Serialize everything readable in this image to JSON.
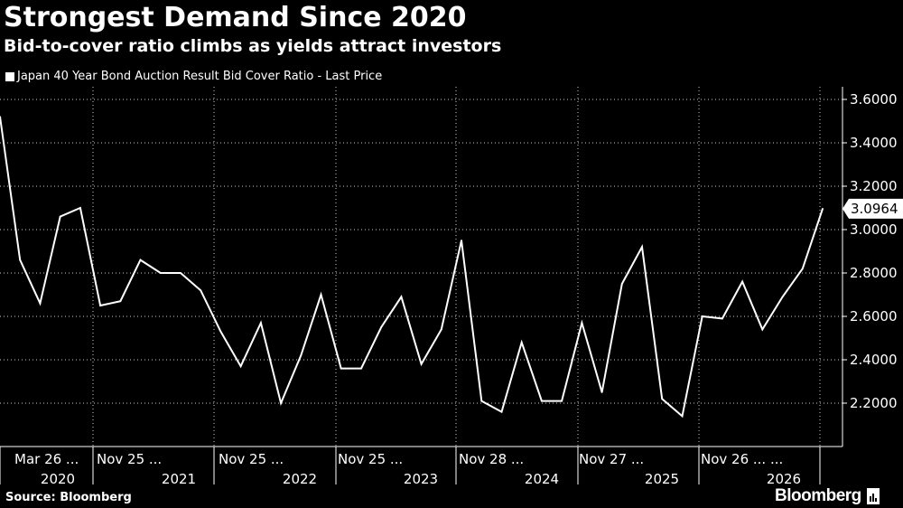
{
  "title": "Strongest Demand Since 2020",
  "subtitle": "Bid-to-cover ratio climbs as yields attract investors",
  "legend": {
    "label": "Japan 40 Year Bond Auction Result Bid Cover Ratio - Last Price"
  },
  "footer": {
    "source": "Source: Bloomberg",
    "brand": "Bloomberg"
  },
  "colors": {
    "background": "#000000",
    "line": "#ffffff",
    "grid": "#ffffff",
    "text": "#ffffff"
  },
  "chart_data": {
    "type": "line",
    "grid": true,
    "grid_style": "dotted",
    "y_axis_position": "right",
    "ylim": [
      2.0,
      3.65
    ],
    "y_ticks": [
      {
        "value": 2.2,
        "label": "2.2000"
      },
      {
        "value": 2.4,
        "label": "2.4000"
      },
      {
        "value": 2.6,
        "label": "2.6000"
      },
      {
        "value": 2.8,
        "label": "2.8000"
      },
      {
        "value": 3.0,
        "label": "3.0000"
      },
      {
        "value": 3.2,
        "label": "3.2000"
      },
      {
        "value": 3.4,
        "label": "3.4000"
      },
      {
        "value": 3.6,
        "label": "3.6000"
      }
    ],
    "x_tick_labels": [
      "Mar 26 ...",
      "Nov 25 ...",
      "Nov 25 ...",
      "Nov 25 ...",
      "Nov 28 ...",
      "Nov 27 ...",
      "Nov 26 ... ..."
    ],
    "x_year_labels": [
      "2020",
      "2021",
      "2022",
      "2023",
      "2024",
      "2025",
      "2026"
    ],
    "last_value": "3.0964",
    "series": [
      {
        "name": "Japan 40 Year Bond Auction Result Bid Cover Ratio - Last Price",
        "values": [
          3.52,
          2.86,
          2.66,
          3.06,
          3.1,
          2.65,
          2.67,
          2.86,
          2.8,
          2.8,
          2.72,
          2.53,
          2.37,
          2.57,
          2.2,
          2.42,
          2.7,
          2.36,
          2.36,
          2.55,
          2.69,
          2.38,
          2.54,
          2.95,
          2.21,
          2.16,
          2.48,
          2.21,
          2.21,
          2.57,
          2.25,
          2.75,
          2.92,
          2.22,
          2.14,
          2.6,
          2.59,
          2.76,
          2.54,
          2.69,
          2.82,
          3.0964
        ]
      }
    ]
  }
}
